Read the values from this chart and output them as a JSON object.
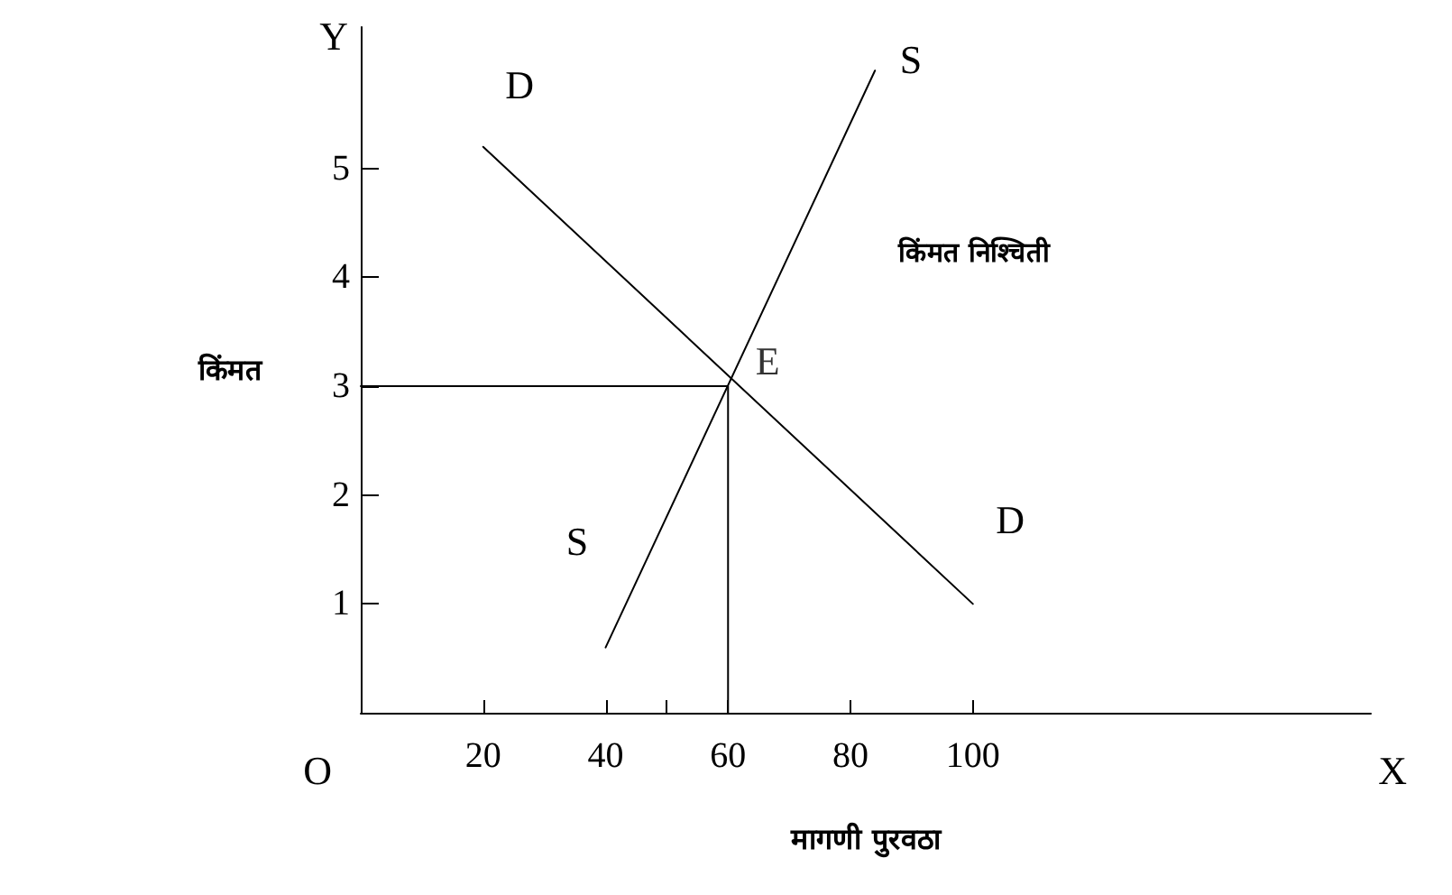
{
  "chart_data": {
    "type": "line",
    "xlabel": "मागणी पुरवठा",
    "ylabel": "किंमत",
    "xlim": [
      0,
      165
    ],
    "ylim": [
      0,
      6.3
    ],
    "xticks": [
      20,
      40,
      {
        "value": 50,
        "label": null
      },
      60,
      80,
      100
    ],
    "yticks": [
      1,
      2,
      3,
      4,
      5
    ],
    "series": [
      {
        "color": "#000000",
        "x": [
          20,
          100
        ],
        "values": [
          5.2,
          1.0
        ]
      },
      {
        "color": "#000000",
        "x": [
          40,
          84
        ],
        "values": [
          0.6,
          5.9
        ]
      },
      {
        "color": "#000000",
        "x": [
          0,
          60,
          60
        ],
        "values": [
          3,
          3,
          0
        ]
      }
    ],
    "annotations": [
      "D",
      "D",
      "S",
      "S",
      {
        "text": "E",
        "x": 60,
        "y": 3
      },
      "किंमत निश्चिती",
      "O",
      "X",
      "Y"
    ],
    "grid": false,
    "marker": "none",
    "line_style": "solid"
  }
}
